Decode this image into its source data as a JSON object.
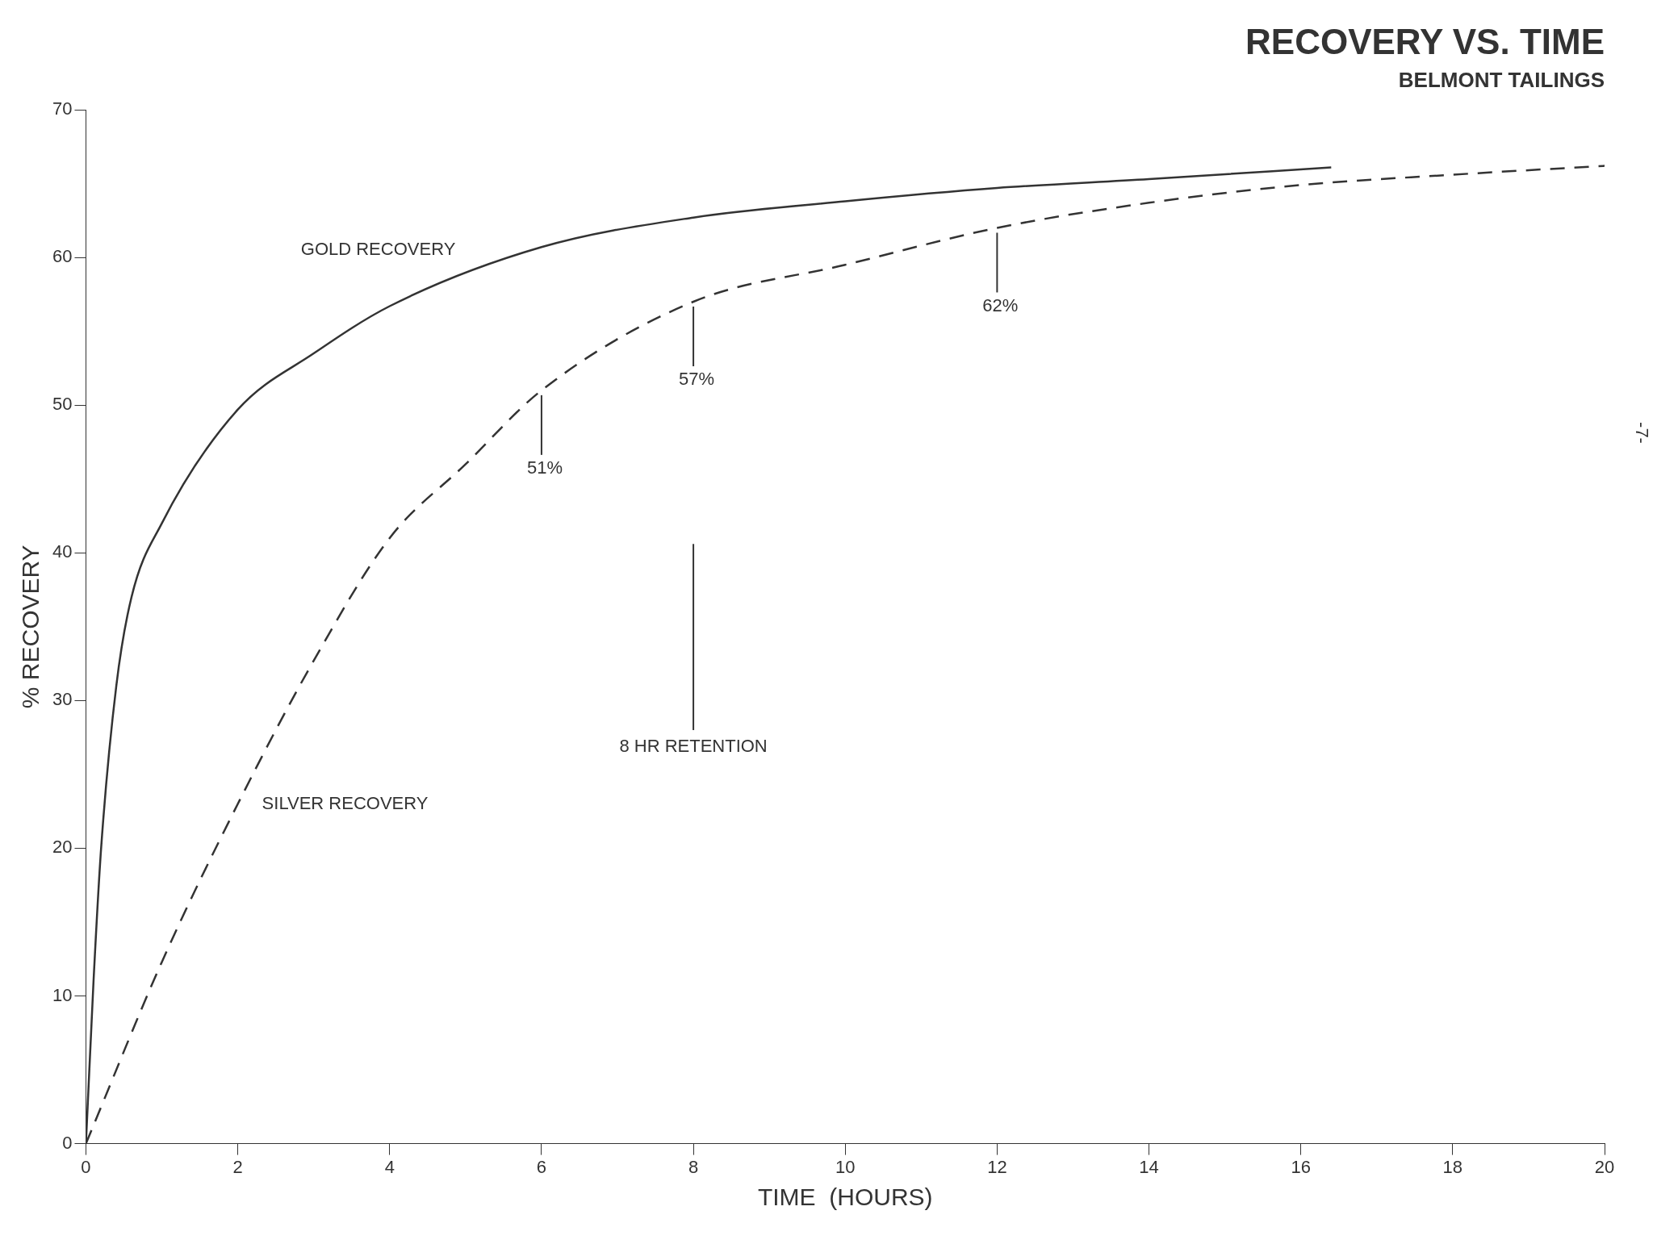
{
  "chart_data": {
    "type": "line",
    "title": "RECOVERY VS. TIME",
    "subtitle": "BELMONT TAILINGS",
    "xlabel": "TIME  (HOURS)",
    "ylabel": "% RECOVERY",
    "xlim": [
      0,
      20
    ],
    "xticks": [
      0,
      2,
      4,
      6,
      8,
      10,
      12,
      14,
      16,
      18,
      20
    ],
    "ylim": [
      0,
      70
    ],
    "yticks": [
      0,
      10,
      20,
      30,
      40,
      50,
      60,
      70
    ],
    "grid": false,
    "legend": false,
    "marker": "none",
    "series": [
      {
        "name": "GOLD RECOVERY",
        "color": "#333333",
        "line_style": "solid",
        "x": [
          0,
          0.1,
          0.2,
          0.4,
          0.6,
          1,
          2,
          3,
          4,
          6,
          8,
          10,
          12,
          14,
          16.4
        ],
        "values": [
          0,
          11,
          20,
          31,
          37,
          42,
          49.7,
          53.5,
          56.7,
          60.7,
          62.7,
          63.8,
          64.7,
          65.3,
          66.1
        ]
      },
      {
        "name": "SILVER RECOVERY",
        "color": "#333333",
        "line_style": "dashed",
        "x": [
          0,
          1,
          2,
          3,
          4,
          5,
          6,
          8,
          10,
          12,
          14,
          16,
          18,
          20
        ],
        "values": [
          0,
          12.3,
          23,
          32.7,
          41,
          46,
          51,
          57,
          59.5,
          62,
          63.7,
          64.9,
          65.6,
          66.2
        ]
      }
    ],
    "annotations": [
      {
        "text": "51%",
        "x": 6,
        "y": 51
      },
      {
        "text": "57%",
        "x": 8,
        "y": 57
      },
      {
        "text": "62%",
        "x": 12,
        "y": 62
      },
      "-7-"
    ],
    "ref_lines": [
      {
        "axis": "x",
        "value": 8,
        "label": "8 HR RETENTION",
        "color": "#333333"
      }
    ]
  }
}
